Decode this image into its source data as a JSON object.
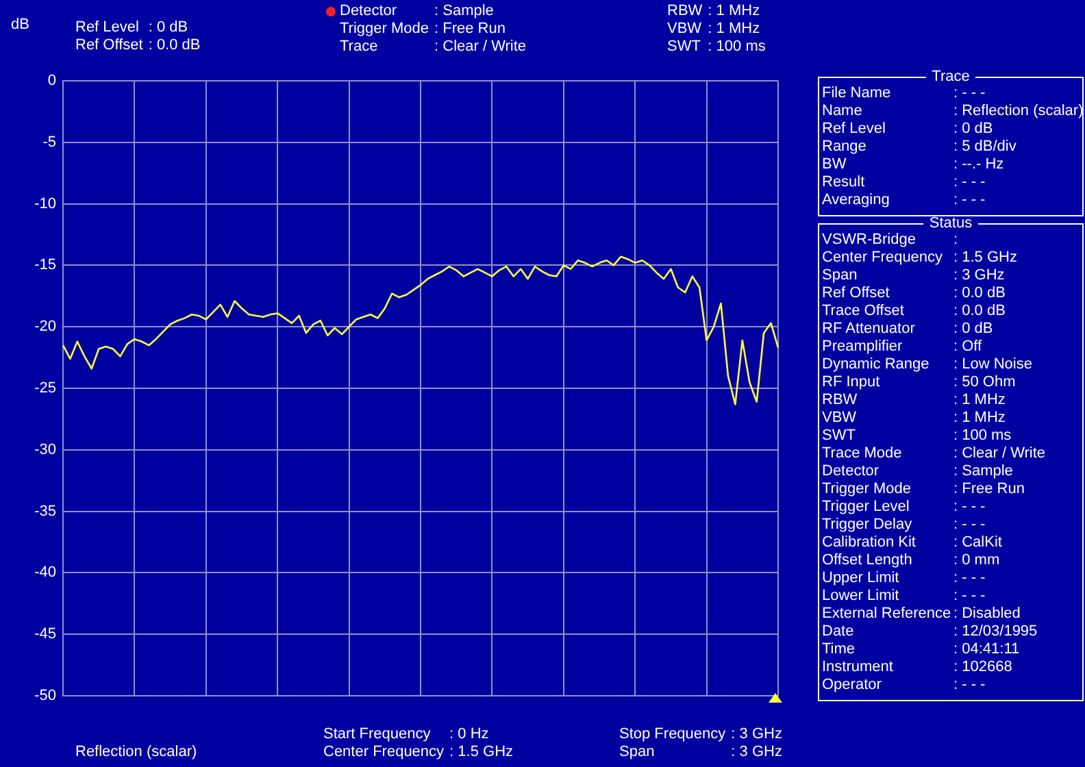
{
  "chart_data": {
    "type": "line",
    "ylabel": "dB",
    "grid": true,
    "tick_labels": "y",
    "annotations": [
      "Ref Level : 0 dB",
      "Ref Offset : 0.0 dB",
      "Detector : Sample",
      "Trigger Mode : Free Run",
      "Trace : Clear / Write",
      "RBW : 1 MHz",
      "VBW : 1 MHz",
      "SWT : 100 ms",
      "Reflection (scalar)",
      "Start Frequency : 0 Hz",
      "Center Frequency : 1.5 GHz",
      "Stop Frequency : 3 GHz",
      "Span : 3 GHz",
      "Trace",
      "File Name : - - -",
      "Name : Reflection (scalar)",
      "Ref Level : 0 dB",
      "Range : 5 dB/div",
      "BW : --.- Hz",
      "Result : - - -",
      "Averaging : - - -",
      "Status",
      "VSWR-Bridge :",
      "Center Frequency : 1.5 GHz",
      "Span : 3 GHz",
      "Ref Offset : 0.0 dB",
      "Trace Offset : 0.0 dB",
      "RF Attenuator : 0 dB",
      "Preamplifier : Off",
      "Dynamic Range : Low Noise",
      "RF Input : 50 Ohm",
      "RBW : 1 MHz",
      "VBW : 1 MHz",
      "SWT : 100 ms",
      "Trace Mode : Clear / Write",
      "Detector : Sample",
      "Trigger Mode : Free Run",
      "Trigger Level : - - -",
      "Trigger Delay : - - -",
      "Calibration Kit : CalKit",
      "Offset Length : 0 mm",
      "Upper Limit : - - -",
      "Lower Limit : - - -",
      "External Reference : Disabled",
      "Date : 12/03/1995",
      "Time : 04:41:11",
      "Instrument : 102668",
      "Operator : - - -"
    ],
    "categories": [
      null,
      null,
      null,
      null,
      null,
      null,
      null,
      null,
      null,
      null,
      null,
      null,
      null,
      null,
      null,
      null,
      null,
      null,
      null,
      null,
      null,
      null,
      null,
      null,
      null,
      null,
      null,
      null,
      null,
      null,
      null,
      null,
      null,
      null,
      null,
      null,
      null,
      null,
      null,
      null,
      null,
      null,
      null,
      null,
      null,
      null,
      null,
      null,
      null,
      null,
      null,
      null,
      null,
      null,
      null,
      null,
      null,
      null,
      null,
      null,
      null,
      null,
      null,
      null,
      null,
      null,
      null,
      null,
      null,
      null,
      null,
      null,
      null,
      null,
      null,
      null,
      null,
      null,
      null,
      null,
      null,
      null,
      null,
      null,
      null,
      null,
      null,
      null,
      null,
      null,
      null,
      null,
      null,
      null,
      null,
      null,
      null,
      null,
      null,
      null,
      null
    ],
    "series": [
      {
        "color": "#ffff40",
        "values": [
          -21.5,
          -22.6,
          -21.2,
          -22.4,
          -23.4,
          -21.8,
          -21.6,
          -21.8,
          -22.4,
          -21.4,
          -21.0,
          -21.2,
          -21.5,
          -21.0,
          -20.4,
          -19.8,
          -19.5,
          -19.3,
          -19.0,
          -19.1,
          -19.4,
          -18.8,
          -18.2,
          -19.2,
          -17.9,
          -18.5,
          -19.0,
          -19.1,
          -19.2,
          -19.0,
          -18.9,
          -19.3,
          -19.7,
          -19.1,
          -20.5,
          -19.8,
          -19.5,
          -20.7,
          -20.1,
          -20.6,
          -20.0,
          -19.4,
          -19.2,
          -19.0,
          -19.3,
          -18.5,
          -17.3,
          -17.6,
          -17.4,
          -17.0,
          -16.6,
          -16.1,
          -15.8,
          -15.5,
          -15.1,
          -15.4,
          -15.9,
          -15.6,
          -15.3,
          -15.6,
          -15.9,
          -15.4,
          -15.1,
          -15.9,
          -15.3,
          -16.1,
          -15.1,
          -15.5,
          -15.8,
          -15.9,
          -15.0,
          -15.3,
          -14.6,
          -14.8,
          -15.1,
          -14.8,
          -14.6,
          -15.0,
          -14.3,
          -14.5,
          -14.8,
          -14.6,
          -15.0,
          -15.6,
          -16.1,
          -15.3,
          -16.8,
          -17.2,
          -15.9,
          -16.8,
          -21.1,
          -20.0,
          -18.1,
          -24.0,
          -26.3,
          -21.1,
          -24.5,
          -26.1,
          -20.5,
          -19.7,
          -21.7
        ]
      }
    ],
    "ylim": [
      -50,
      0
    ],
    "yticks": [
      -50,
      -45,
      -40,
      -35,
      -30,
      -25,
      -20,
      -15,
      -10,
      -5,
      0
    ]
  }
}
